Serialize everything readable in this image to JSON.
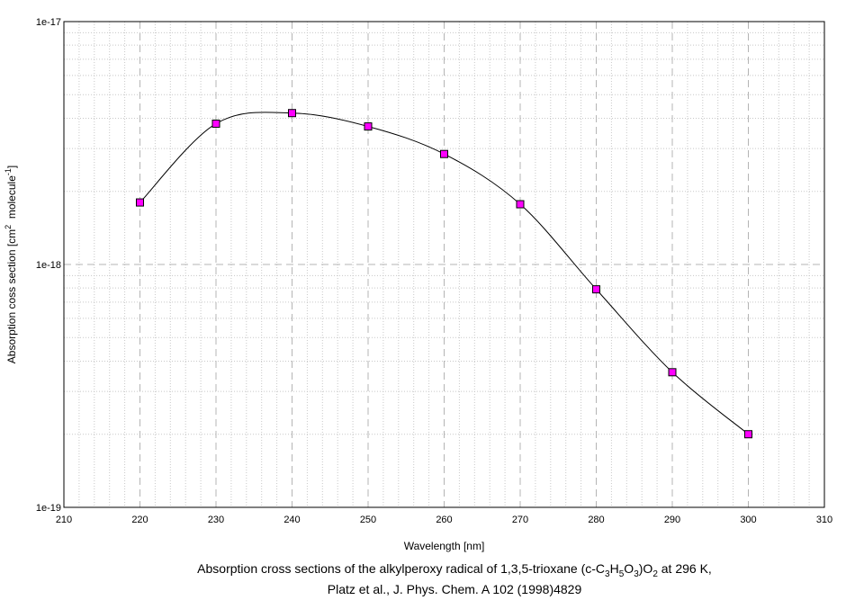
{
  "chart_data": {
    "type": "line",
    "series": [
      {
        "x": [
          220,
          230,
          240,
          250,
          260,
          270,
          280,
          290,
          300
        ],
        "y": [
          1.8e-18,
          3.8e-18,
          4.2e-18,
          3.7e-18,
          2.85e-18,
          1.77e-18,
          7.9e-19,
          3.6e-19,
          2e-19
        ],
        "marker": "square",
        "marker_color": "#ff00ff",
        "line_color": "#000000",
        "smooth": true
      }
    ],
    "xlabel": "Wavelength [nm]",
    "ylabel_parts": {
      "pre": "Absorption coss section [cm",
      "sup1": "2",
      "mid": "  molecule",
      "sup2": "-1",
      "post": "]"
    },
    "xlim": [
      210,
      310
    ],
    "ylim": [
      1e-19,
      1e-17
    ],
    "yscale": "log",
    "xticks": [
      "210",
      "220",
      "230",
      "240",
      "250",
      "260",
      "270",
      "280",
      "290",
      "300",
      "310"
    ],
    "yticks": [
      "1e-19",
      "1e-18",
      "1e-17"
    ],
    "grid": true
  },
  "caption": {
    "line1_parts": [
      "Absorption cross sections of the alkylperoxy radical of 1,3,5-trioxane (c-C",
      "3",
      "H",
      "5",
      "O",
      "3",
      ")O",
      "2",
      " at 296 K,"
    ],
    "line2": "Platz et al., J. Phys. Chem. A 102 (1998)4829"
  }
}
